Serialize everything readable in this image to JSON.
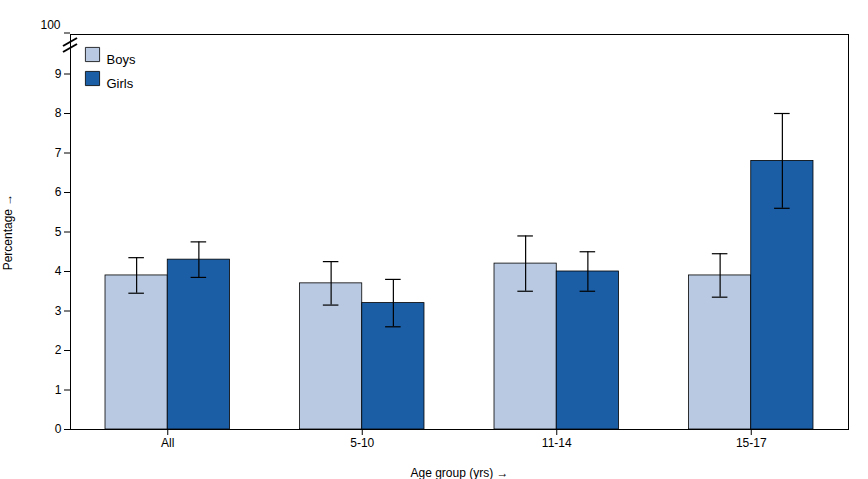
{
  "chart_data": {
    "type": "bar",
    "xlabel": "Age group (yrs)",
    "ylabel": "Percentage",
    "categories": [
      "All",
      "5-10",
      "11-14",
      "15-17"
    ],
    "series": [
      {
        "name": "Boys",
        "color": "#b8c9e1",
        "values": [
          3.9,
          3.7,
          4.2,
          3.9
        ],
        "errors": [
          0.45,
          0.55,
          0.7,
          0.55
        ]
      },
      {
        "name": "Girls",
        "color": "#1b5ea6",
        "values": [
          4.3,
          3.2,
          4.0,
          6.8
        ],
        "errors": [
          0.45,
          0.6,
          0.5,
          1.2
        ]
      }
    ],
    "ylim": [
      0,
      10
    ],
    "yticks": [
      0,
      1,
      2,
      3,
      4,
      5,
      6,
      7,
      8,
      9
    ],
    "grid": false,
    "legend": "upper left",
    "annotations": [
      "100"
    ]
  }
}
